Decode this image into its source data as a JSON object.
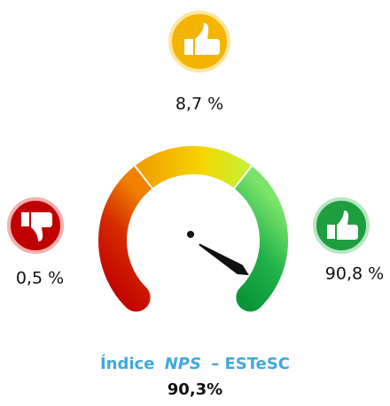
{
  "chart_data": {
    "type": "gauge",
    "values": [
      0.5,
      8.7,
      90.8
    ],
    "value_labels": [
      "0,5 %",
      "8,7 %",
      "90,8 %"
    ],
    "colors": [
      "#c00000",
      "#f5b400",
      "#1e9e3e"
    ],
    "index": {
      "value": 90.3,
      "label": "90,3%"
    },
    "title_parts": [
      "Índice",
      "NPS",
      "– ESTeSC"
    ],
    "ylim": [
      -100,
      100
    ]
  }
}
